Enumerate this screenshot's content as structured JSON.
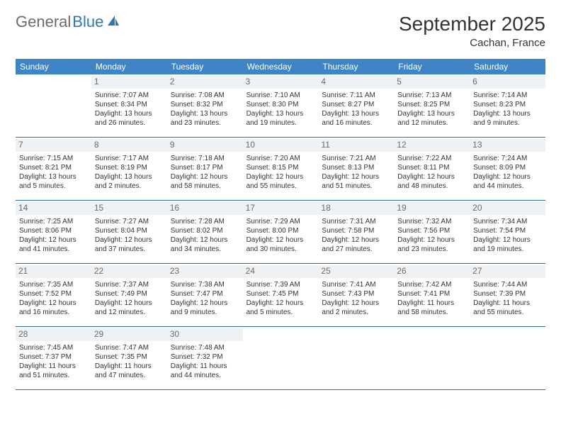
{
  "logo": {
    "part1": "General",
    "part2": "Blue"
  },
  "header": {
    "month_title": "September 2025",
    "location": "Cachan, France"
  },
  "colors": {
    "header_bg": "#3f85c6",
    "header_text": "#ffffff",
    "daynum_bg": "#eef2f5",
    "daynum_text": "#6b6b6b",
    "rule": "#2f6fa8",
    "body_text": "#333333",
    "logo_gray": "#6b6b6b",
    "logo_blue": "#2f76b8"
  },
  "weekdays": [
    "Sunday",
    "Monday",
    "Tuesday",
    "Wednesday",
    "Thursday",
    "Friday",
    "Saturday"
  ],
  "weeks": [
    [
      null,
      {
        "n": "1",
        "sr": "Sunrise: 7:07 AM",
        "ss": "Sunset: 8:34 PM",
        "dl": "Daylight: 13 hours and 26 minutes."
      },
      {
        "n": "2",
        "sr": "Sunrise: 7:08 AM",
        "ss": "Sunset: 8:32 PM",
        "dl": "Daylight: 13 hours and 23 minutes."
      },
      {
        "n": "3",
        "sr": "Sunrise: 7:10 AM",
        "ss": "Sunset: 8:30 PM",
        "dl": "Daylight: 13 hours and 19 minutes."
      },
      {
        "n": "4",
        "sr": "Sunrise: 7:11 AM",
        "ss": "Sunset: 8:27 PM",
        "dl": "Daylight: 13 hours and 16 minutes."
      },
      {
        "n": "5",
        "sr": "Sunrise: 7:13 AM",
        "ss": "Sunset: 8:25 PM",
        "dl": "Daylight: 13 hours and 12 minutes."
      },
      {
        "n": "6",
        "sr": "Sunrise: 7:14 AM",
        "ss": "Sunset: 8:23 PM",
        "dl": "Daylight: 13 hours and 9 minutes."
      }
    ],
    [
      {
        "n": "7",
        "sr": "Sunrise: 7:15 AM",
        "ss": "Sunset: 8:21 PM",
        "dl": "Daylight: 13 hours and 5 minutes."
      },
      {
        "n": "8",
        "sr": "Sunrise: 7:17 AM",
        "ss": "Sunset: 8:19 PM",
        "dl": "Daylight: 13 hours and 2 minutes."
      },
      {
        "n": "9",
        "sr": "Sunrise: 7:18 AM",
        "ss": "Sunset: 8:17 PM",
        "dl": "Daylight: 12 hours and 58 minutes."
      },
      {
        "n": "10",
        "sr": "Sunrise: 7:20 AM",
        "ss": "Sunset: 8:15 PM",
        "dl": "Daylight: 12 hours and 55 minutes."
      },
      {
        "n": "11",
        "sr": "Sunrise: 7:21 AM",
        "ss": "Sunset: 8:13 PM",
        "dl": "Daylight: 12 hours and 51 minutes."
      },
      {
        "n": "12",
        "sr": "Sunrise: 7:22 AM",
        "ss": "Sunset: 8:11 PM",
        "dl": "Daylight: 12 hours and 48 minutes."
      },
      {
        "n": "13",
        "sr": "Sunrise: 7:24 AM",
        "ss": "Sunset: 8:09 PM",
        "dl": "Daylight: 12 hours and 44 minutes."
      }
    ],
    [
      {
        "n": "14",
        "sr": "Sunrise: 7:25 AM",
        "ss": "Sunset: 8:06 PM",
        "dl": "Daylight: 12 hours and 41 minutes."
      },
      {
        "n": "15",
        "sr": "Sunrise: 7:27 AM",
        "ss": "Sunset: 8:04 PM",
        "dl": "Daylight: 12 hours and 37 minutes."
      },
      {
        "n": "16",
        "sr": "Sunrise: 7:28 AM",
        "ss": "Sunset: 8:02 PM",
        "dl": "Daylight: 12 hours and 34 minutes."
      },
      {
        "n": "17",
        "sr": "Sunrise: 7:29 AM",
        "ss": "Sunset: 8:00 PM",
        "dl": "Daylight: 12 hours and 30 minutes."
      },
      {
        "n": "18",
        "sr": "Sunrise: 7:31 AM",
        "ss": "Sunset: 7:58 PM",
        "dl": "Daylight: 12 hours and 27 minutes."
      },
      {
        "n": "19",
        "sr": "Sunrise: 7:32 AM",
        "ss": "Sunset: 7:56 PM",
        "dl": "Daylight: 12 hours and 23 minutes."
      },
      {
        "n": "20",
        "sr": "Sunrise: 7:34 AM",
        "ss": "Sunset: 7:54 PM",
        "dl": "Daylight: 12 hours and 19 minutes."
      }
    ],
    [
      {
        "n": "21",
        "sr": "Sunrise: 7:35 AM",
        "ss": "Sunset: 7:52 PM",
        "dl": "Daylight: 12 hours and 16 minutes."
      },
      {
        "n": "22",
        "sr": "Sunrise: 7:37 AM",
        "ss": "Sunset: 7:49 PM",
        "dl": "Daylight: 12 hours and 12 minutes."
      },
      {
        "n": "23",
        "sr": "Sunrise: 7:38 AM",
        "ss": "Sunset: 7:47 PM",
        "dl": "Daylight: 12 hours and 9 minutes."
      },
      {
        "n": "24",
        "sr": "Sunrise: 7:39 AM",
        "ss": "Sunset: 7:45 PM",
        "dl": "Daylight: 12 hours and 5 minutes."
      },
      {
        "n": "25",
        "sr": "Sunrise: 7:41 AM",
        "ss": "Sunset: 7:43 PM",
        "dl": "Daylight: 12 hours and 2 minutes."
      },
      {
        "n": "26",
        "sr": "Sunrise: 7:42 AM",
        "ss": "Sunset: 7:41 PM",
        "dl": "Daylight: 11 hours and 58 minutes."
      },
      {
        "n": "27",
        "sr": "Sunrise: 7:44 AM",
        "ss": "Sunset: 7:39 PM",
        "dl": "Daylight: 11 hours and 55 minutes."
      }
    ],
    [
      {
        "n": "28",
        "sr": "Sunrise: 7:45 AM",
        "ss": "Sunset: 7:37 PM",
        "dl": "Daylight: 11 hours and 51 minutes."
      },
      {
        "n": "29",
        "sr": "Sunrise: 7:47 AM",
        "ss": "Sunset: 7:35 PM",
        "dl": "Daylight: 11 hours and 47 minutes."
      },
      {
        "n": "30",
        "sr": "Sunrise: 7:48 AM",
        "ss": "Sunset: 7:32 PM",
        "dl": "Daylight: 11 hours and 44 minutes."
      },
      null,
      null,
      null,
      null
    ]
  ]
}
